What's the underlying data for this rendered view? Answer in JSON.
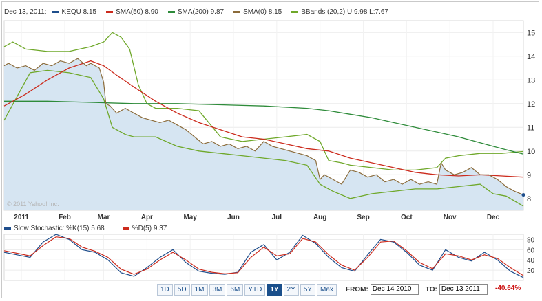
{
  "legend": {
    "date": "Dec 13, 2011:",
    "items": [
      {
        "label": "KEQU 8.15",
        "color": "#1f4e8c"
      },
      {
        "label": "SMA(50) 8.90",
        "color": "#cc2b1d"
      },
      {
        "label": "SMA(200) 9.87",
        "color": "#2e8b3a"
      },
      {
        "label": "SMA(0) 8.15",
        "color": "#8b6b3a"
      },
      {
        "label": "BBands (20,2) U:9.98 L:7.67",
        "color": "#6fa82a"
      }
    ]
  },
  "stoch_legend": {
    "items": [
      {
        "label": "Slow Stochastic: %K(15) 5.68",
        "color": "#1f4e8c"
      },
      {
        "label": "%D(5) 9.37",
        "color": "#cc2b1d"
      }
    ]
  },
  "watermark": "© 2011 Yahoo! Inc.",
  "range_buttons": {
    "items": [
      {
        "label": "1D"
      },
      {
        "label": "5D"
      },
      {
        "label": "1M"
      },
      {
        "label": "3M"
      },
      {
        "label": "6M"
      },
      {
        "label": "YTD"
      },
      {
        "label": "1Y",
        "active": true
      },
      {
        "label": "2Y"
      },
      {
        "label": "5Y"
      },
      {
        "label": "Max"
      }
    ]
  },
  "from_label": "FROM:",
  "from_value": "Dec 14 2010",
  "to_label": "TO:",
  "to_value": "Dec 13 2011",
  "change_pct": "-40.64%",
  "chart_data": [
    {
      "type": "line",
      "ylim": [
        7.5,
        15.5
      ],
      "yticks": [
        8,
        9,
        10,
        11,
        12,
        13,
        14,
        15
      ],
      "xlim": [
        0,
        12
      ],
      "x_categories": [
        "2011",
        "Feb",
        "Mar",
        "Apr",
        "May",
        "Jun",
        "Jul",
        "Aug",
        "Sep",
        "Oct",
        "Nov",
        "Dec"
      ],
      "x_category_positions": [
        0.4,
        1.4,
        2.3,
        3.3,
        4.3,
        5.3,
        6.3,
        7.3,
        8.3,
        9.3,
        10.3,
        11.3
      ],
      "last_value_marker": 8.15,
      "series": [
        {
          "name": "KEQU",
          "color": "#1f4e8c",
          "fill": "#d6e5f2",
          "x": [
            0,
            0.1,
            0.3,
            0.5,
            0.7,
            0.9,
            1.1,
            1.3,
            1.5,
            1.7,
            1.9,
            2.0,
            2.1,
            2.2,
            2.3,
            2.35,
            2.45,
            2.6,
            2.8,
            3.0,
            3.2,
            3.4,
            3.6,
            3.8,
            4.0,
            4.2,
            4.4,
            4.6,
            4.8,
            5.0,
            5.2,
            5.4,
            5.6,
            5.8,
            6.0,
            6.2,
            6.4,
            6.6,
            6.8,
            7.0,
            7.2,
            7.3,
            7.4,
            7.6,
            7.8,
            8.0,
            8.2,
            8.4,
            8.6,
            8.8,
            9.0,
            9.2,
            9.4,
            9.6,
            9.8,
            10.0,
            10.1,
            10.2,
            10.4,
            10.6,
            10.8,
            11.0,
            11.2,
            11.4,
            11.6,
            11.8,
            12.0
          ],
          "y": [
            13.6,
            13.7,
            13.5,
            13.6,
            13.4,
            13.7,
            13.6,
            13.8,
            13.7,
            13.9,
            13.6,
            13.7,
            13.6,
            13.5,
            12.9,
            12.0,
            11.9,
            11.6,
            11.8,
            11.6,
            11.4,
            11.3,
            11.2,
            11.3,
            11.1,
            10.9,
            10.6,
            10.3,
            10.4,
            10.2,
            10.3,
            10.1,
            10.2,
            10.0,
            10.4,
            10.2,
            10.1,
            10.0,
            9.9,
            9.8,
            9.6,
            8.8,
            9.0,
            8.8,
            8.6,
            9.2,
            9.1,
            8.9,
            9.0,
            8.7,
            8.8,
            8.6,
            8.8,
            8.6,
            8.7,
            8.6,
            9.5,
            9.2,
            9.0,
            9.1,
            9.3,
            9.0,
            9.0,
            8.8,
            8.5,
            8.3,
            8.15
          ]
        },
        {
          "name": "SMA(50)",
          "color": "#cc2b1d",
          "x": [
            0,
            0.5,
            1.0,
            1.5,
            2.0,
            2.3,
            2.6,
            3.0,
            3.5,
            4.0,
            4.5,
            5.0,
            5.5,
            6.0,
            6.5,
            7.0,
            7.5,
            8.0,
            8.5,
            9.0,
            9.5,
            10.0,
            10.5,
            11.0,
            11.5,
            12.0
          ],
          "y": [
            11.9,
            12.4,
            13.0,
            13.5,
            13.8,
            13.6,
            13.2,
            12.7,
            12.1,
            11.6,
            11.2,
            10.9,
            10.6,
            10.5,
            10.3,
            10.1,
            10.0,
            9.7,
            9.5,
            9.3,
            9.1,
            9.0,
            8.95,
            9.0,
            8.95,
            8.9
          ]
        },
        {
          "name": "SMA(200)",
          "color": "#2e8b3a",
          "x": [
            0,
            1,
            2,
            3,
            4,
            5,
            6,
            7,
            7.5,
            8,
            8.5,
            9,
            9.5,
            10,
            10.5,
            11,
            11.5,
            12
          ],
          "y": [
            12.1,
            12.1,
            12.05,
            12.0,
            12.0,
            11.95,
            11.9,
            11.8,
            11.7,
            11.55,
            11.4,
            11.2,
            11.0,
            10.8,
            10.6,
            10.35,
            10.1,
            9.87
          ]
        },
        {
          "name": "BBands upper",
          "color": "#6fa82a",
          "x": [
            0,
            0.2,
            0.5,
            1.0,
            1.5,
            2.0,
            2.3,
            2.5,
            2.7,
            2.9,
            3.1,
            3.3,
            3.5,
            4.0,
            4.5,
            5.0,
            5.5,
            6.0,
            6.5,
            7.0,
            7.3,
            7.5,
            7.8,
            8.0,
            8.5,
            9.0,
            9.5,
            10.0,
            10.2,
            10.5,
            11.0,
            11.5,
            12.0
          ],
          "y": [
            14.4,
            14.6,
            14.3,
            14.2,
            14.2,
            14.4,
            14.6,
            15.0,
            14.8,
            14.3,
            12.8,
            12.0,
            11.8,
            11.8,
            11.7,
            10.6,
            10.4,
            10.5,
            10.6,
            10.7,
            10.4,
            9.6,
            9.5,
            9.4,
            9.3,
            9.2,
            9.2,
            9.3,
            9.7,
            9.8,
            9.9,
            9.9,
            9.98
          ]
        },
        {
          "name": "BBands lower",
          "color": "#6fa82a",
          "x": [
            0,
            0.3,
            0.6,
            1.0,
            1.5,
            2.0,
            2.3,
            2.5,
            2.8,
            3.0,
            3.3,
            3.5,
            4.0,
            4.5,
            5.0,
            5.5,
            6.0,
            6.5,
            7.0,
            7.3,
            7.6,
            8.0,
            8.5,
            9.0,
            9.5,
            10.0,
            10.5,
            11.0,
            11.3,
            11.6,
            12.0
          ],
          "y": [
            11.3,
            12.3,
            13.3,
            13.4,
            13.3,
            13.1,
            12.2,
            11.0,
            10.7,
            10.6,
            10.6,
            10.6,
            10.2,
            10.0,
            9.9,
            9.8,
            9.7,
            9.6,
            9.4,
            8.6,
            8.3,
            8.0,
            8.2,
            8.3,
            8.4,
            8.4,
            8.5,
            8.6,
            8.2,
            8.1,
            7.67
          ]
        }
      ]
    },
    {
      "type": "line",
      "ylim": [
        0,
        90
      ],
      "yticks": [
        20,
        40,
        60,
        80
      ],
      "xlim": [
        0,
        12
      ],
      "series": [
        {
          "name": "Slow Stochastic: %K(15)",
          "color": "#1f4e8c",
          "x": [
            0,
            0.3,
            0.6,
            0.9,
            1.2,
            1.5,
            1.8,
            2.1,
            2.4,
            2.7,
            3.0,
            3.3,
            3.6,
            3.9,
            4.2,
            4.5,
            4.8,
            5.1,
            5.4,
            5.7,
            6.0,
            6.3,
            6.6,
            6.9,
            7.2,
            7.5,
            7.8,
            8.1,
            8.4,
            8.7,
            9.0,
            9.3,
            9.6,
            9.9,
            10.2,
            10.5,
            10.8,
            11.1,
            11.4,
            11.7,
            12.0
          ],
          "y": [
            55,
            50,
            45,
            75,
            90,
            80,
            60,
            55,
            40,
            15,
            8,
            25,
            45,
            60,
            35,
            18,
            14,
            12,
            16,
            55,
            70,
            40,
            55,
            88,
            72,
            45,
            25,
            18,
            50,
            80,
            75,
            55,
            30,
            20,
            60,
            45,
            38,
            55,
            40,
            18,
            5.68
          ]
        },
        {
          "name": "%D(5)",
          "color": "#cc2b1d",
          "x": [
            0,
            0.3,
            0.6,
            0.9,
            1.2,
            1.5,
            1.8,
            2.1,
            2.4,
            2.7,
            3.0,
            3.3,
            3.6,
            3.9,
            4.2,
            4.5,
            4.8,
            5.1,
            5.4,
            5.7,
            6.0,
            6.3,
            6.6,
            6.9,
            7.2,
            7.5,
            7.8,
            8.1,
            8.4,
            8.7,
            9.0,
            9.3,
            9.6,
            9.9,
            10.2,
            10.5,
            10.8,
            11.1,
            11.4,
            11.7,
            12.0
          ],
          "y": [
            58,
            53,
            48,
            68,
            85,
            82,
            65,
            57,
            45,
            22,
            12,
            22,
            40,
            55,
            40,
            22,
            16,
            13,
            15,
            45,
            65,
            48,
            52,
            82,
            75,
            50,
            30,
            20,
            45,
            75,
            77,
            58,
            35,
            23,
            52,
            48,
            40,
            50,
            43,
            25,
            9.37
          ]
        }
      ]
    }
  ]
}
